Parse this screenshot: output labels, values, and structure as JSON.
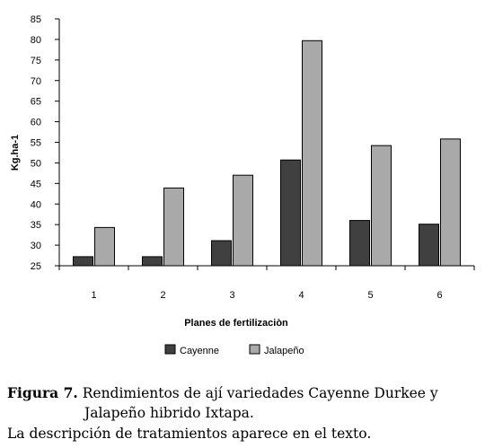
{
  "chart_data": {
    "type": "bar",
    "categories": [
      "1",
      "2",
      "3",
      "4",
      "5",
      "6"
    ],
    "series": [
      {
        "name": "Cayenne",
        "values": [
          27.2,
          27.2,
          31.1,
          50.7,
          36.0,
          35.1
        ],
        "color": "#404040"
      },
      {
        "name": "Jalapeño",
        "values": [
          34.3,
          43.9,
          47.0,
          79.7,
          54.2,
          55.8
        ],
        "color": "#a9a9a9"
      }
    ],
    "xlabel": "Planes de fertilizaciòn",
    "ylabel": "Kg.ha-1",
    "ylim": [
      25,
      85
    ],
    "yticks": [
      25,
      30,
      35,
      40,
      45,
      50,
      55,
      60,
      65,
      70,
      75,
      80,
      85
    ],
    "grid": false,
    "legend_position": "bottom"
  },
  "caption": {
    "figure_label": "Figura 7.",
    "line1_text": " Rendimientos de ají variedades Cayenne Durkee y",
    "line2": "Jalapeño hibrido Ixtapa.",
    "line3": "La descripción de tratamientos aparece en el texto."
  }
}
